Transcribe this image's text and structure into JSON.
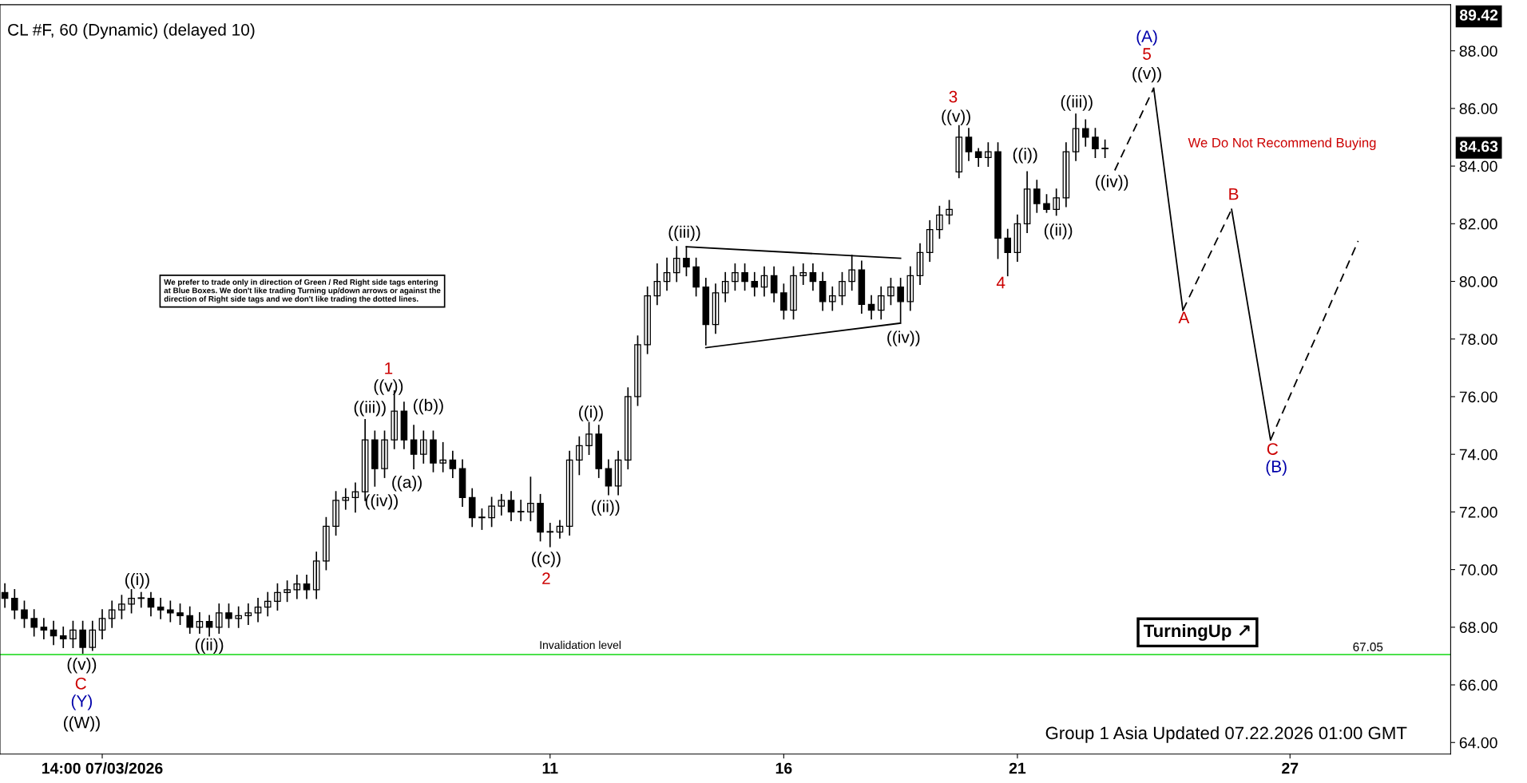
{
  "chart_data": {
    "type": "candlestick",
    "title": "CL #F, 60 (Dynamic) (delayed 10)",
    "categories": [
      null,
      null,
      null,
      null,
      null,
      null,
      null,
      null,
      null,
      null,
      "14:00 07/03/2026",
      null,
      null,
      null,
      null,
      null,
      null,
      null,
      null,
      null,
      null,
      null,
      null,
      null,
      null,
      null,
      null,
      null,
      null,
      null,
      null,
      null,
      null,
      null,
      null,
      null,
      null,
      null,
      null,
      null,
      null,
      null,
      null,
      null,
      null,
      null,
      null,
      null,
      null,
      null,
      null,
      null,
      null,
      null,
      null,
      null,
      "11",
      null,
      null,
      null,
      null,
      null,
      null,
      null,
      null,
      null,
      null,
      null,
      null,
      null,
      null,
      null,
      null,
      null,
      null,
      null,
      null,
      null,
      null,
      null,
      "16",
      null,
      null,
      null,
      null,
      null,
      null,
      null,
      null,
      null,
      null,
      null,
      null,
      null,
      null,
      null,
      null,
      null,
      null,
      null,
      null,
      null,
      null,
      null,
      "21",
      null,
      null,
      null,
      null,
      null,
      null,
      null,
      null,
      null,
      null,
      null,
      null,
      null,
      null,
      null,
      null,
      null,
      null,
      null,
      null,
      null,
      null,
      null,
      null,
      null,
      null,
      null,
      "27",
      null,
      null,
      null,
      null,
      null,
      null,
      null,
      null,
      null,
      null,
      null,
      null,
      null,
      null,
      null,
      null
    ],
    "ohlc": [
      [
        69.2,
        69.5,
        68.7,
        69.0
      ],
      [
        69.0,
        69.3,
        68.3,
        68.6
      ],
      [
        68.6,
        68.9,
        68.0,
        68.3
      ],
      [
        68.3,
        68.6,
        67.7,
        68.0
      ],
      [
        68.0,
        68.3,
        67.6,
        67.9
      ],
      [
        67.9,
        68.2,
        67.4,
        67.7
      ],
      [
        67.7,
        68.0,
        67.3,
        67.6
      ],
      [
        67.6,
        68.2,
        67.3,
        67.9
      ],
      [
        67.9,
        68.2,
        67.1,
        67.3
      ],
      [
        67.3,
        68.2,
        67.2,
        67.9
      ],
      [
        67.9,
        68.6,
        67.6,
        68.3
      ],
      [
        68.3,
        68.9,
        68.0,
        68.6
      ],
      [
        68.6,
        69.1,
        68.3,
        68.8
      ],
      [
        68.8,
        69.3,
        68.5,
        69.0
      ],
      [
        69.0,
        69.2,
        68.7,
        69.0
      ],
      [
        69.0,
        69.2,
        68.4,
        68.7
      ],
      [
        68.7,
        69.0,
        68.3,
        68.6
      ],
      [
        68.6,
        68.9,
        68.2,
        68.5
      ],
      [
        68.5,
        68.8,
        68.1,
        68.4
      ],
      [
        68.4,
        68.7,
        67.8,
        68.0
      ],
      [
        68.0,
        68.5,
        67.8,
        68.2
      ],
      [
        68.2,
        68.4,
        67.7,
        68.0
      ],
      [
        68.0,
        68.8,
        67.8,
        68.5
      ],
      [
        68.5,
        68.8,
        68.0,
        68.3
      ],
      [
        68.3,
        68.7,
        68.0,
        68.4
      ],
      [
        68.4,
        68.8,
        68.1,
        68.5
      ],
      [
        68.5,
        69.0,
        68.2,
        68.7
      ],
      [
        68.7,
        69.2,
        68.4,
        68.9
      ],
      [
        68.9,
        69.5,
        68.6,
        69.2
      ],
      [
        69.2,
        69.6,
        68.9,
        69.3
      ],
      [
        69.3,
        69.8,
        69.0,
        69.5
      ],
      [
        69.5,
        69.8,
        69.0,
        69.3
      ],
      [
        69.3,
        70.6,
        69.0,
        70.3
      ],
      [
        70.3,
        71.8,
        70.0,
        71.5
      ],
      [
        71.5,
        72.7,
        71.2,
        72.4
      ],
      [
        72.4,
        72.8,
        72.1,
        72.5
      ],
      [
        72.5,
        73.0,
        72.0,
        72.7
      ],
      [
        72.7,
        75.2,
        72.4,
        74.5
      ],
      [
        74.5,
        74.8,
        72.9,
        73.5
      ],
      [
        73.5,
        74.8,
        73.2,
        74.5
      ],
      [
        74.5,
        76.2,
        74.2,
        75.5
      ],
      [
        75.5,
        75.8,
        74.2,
        74.5
      ],
      [
        74.5,
        75.0,
        73.5,
        74.0
      ],
      [
        74.0,
        74.8,
        73.7,
        74.5
      ],
      [
        74.5,
        74.8,
        73.4,
        73.7
      ],
      [
        73.7,
        74.4,
        73.4,
        73.8
      ],
      [
        73.8,
        74.1,
        73.2,
        73.5
      ],
      [
        73.5,
        73.8,
        72.2,
        72.5
      ],
      [
        72.5,
        72.8,
        71.5,
        71.8
      ],
      [
        71.8,
        72.1,
        71.4,
        71.8
      ],
      [
        71.8,
        72.5,
        71.5,
        72.2
      ],
      [
        72.2,
        72.6,
        71.9,
        72.4
      ],
      [
        72.4,
        72.7,
        71.7,
        72.0
      ],
      [
        72.0,
        72.4,
        71.7,
        72.0
      ],
      [
        72.0,
        73.2,
        71.7,
        72.3
      ],
      [
        72.3,
        72.6,
        71.0,
        71.3
      ],
      [
        71.3,
        71.6,
        70.8,
        71.3
      ],
      [
        71.3,
        71.7,
        71.1,
        71.5
      ],
      [
        71.5,
        74.1,
        71.2,
        73.8
      ],
      [
        73.8,
        74.6,
        73.3,
        74.3
      ],
      [
        74.3,
        75.1,
        74.0,
        74.7
      ],
      [
        74.7,
        75.0,
        73.2,
        73.5
      ],
      [
        73.5,
        73.8,
        72.6,
        72.9
      ],
      [
        72.9,
        74.1,
        72.6,
        73.8
      ],
      [
        73.8,
        76.3,
        73.5,
        76.0
      ],
      [
        76.0,
        78.1,
        75.7,
        77.8
      ],
      [
        77.8,
        79.8,
        77.5,
        79.5
      ],
      [
        79.5,
        80.6,
        79.2,
        80.0
      ],
      [
        80.0,
        80.8,
        79.7,
        80.3
      ],
      [
        80.3,
        81.2,
        80.0,
        80.8
      ],
      [
        80.8,
        81.2,
        80.2,
        80.5
      ],
      [
        80.5,
        80.8,
        79.5,
        79.8
      ],
      [
        79.8,
        80.1,
        77.8,
        78.5
      ],
      [
        78.5,
        79.9,
        78.2,
        79.6
      ],
      [
        79.6,
        80.3,
        79.3,
        80.0
      ],
      [
        80.0,
        80.6,
        79.7,
        80.3
      ],
      [
        80.3,
        80.6,
        79.7,
        80.0
      ],
      [
        80.0,
        80.3,
        79.5,
        79.8
      ],
      [
        79.8,
        80.5,
        79.5,
        80.2
      ],
      [
        80.2,
        80.5,
        79.3,
        79.6
      ],
      [
        79.6,
        79.9,
        78.7,
        79.0
      ],
      [
        79.0,
        80.5,
        78.7,
        80.2
      ],
      [
        80.2,
        80.6,
        79.9,
        80.3
      ],
      [
        80.3,
        80.6,
        79.7,
        80.0
      ],
      [
        80.0,
        80.3,
        79.0,
        79.3
      ],
      [
        79.3,
        79.8,
        79.0,
        79.5
      ],
      [
        79.5,
        80.3,
        79.2,
        80.0
      ],
      [
        80.0,
        80.9,
        79.7,
        80.4
      ],
      [
        80.4,
        80.7,
        78.9,
        79.2
      ],
      [
        79.2,
        79.5,
        78.7,
        79.0
      ],
      [
        79.0,
        79.8,
        78.7,
        79.5
      ],
      [
        79.5,
        80.1,
        79.2,
        79.8
      ],
      [
        79.8,
        80.1,
        78.6,
        79.3
      ],
      [
        79.3,
        80.5,
        79.0,
        80.2
      ],
      [
        80.2,
        81.3,
        79.9,
        81.0
      ],
      [
        81.0,
        82.1,
        80.7,
        81.8
      ],
      [
        81.8,
        82.6,
        81.5,
        82.3
      ],
      [
        82.3,
        82.8,
        82.0,
        82.5
      ],
      [
        83.8,
        85.4,
        83.6,
        85.0
      ],
      [
        85.0,
        85.3,
        84.2,
        84.5
      ],
      [
        84.5,
        84.6,
        84.0,
        84.3
      ],
      [
        84.3,
        84.8,
        84.0,
        84.5
      ],
      [
        84.5,
        84.8,
        80.8,
        81.5
      ],
      [
        81.5,
        81.8,
        80.2,
        81.0
      ],
      [
        81.0,
        82.3,
        80.7,
        82.0
      ],
      [
        82.0,
        83.8,
        81.7,
        83.2
      ],
      [
        83.2,
        83.5,
        82.4,
        82.7
      ],
      [
        82.7,
        83.0,
        82.4,
        82.5
      ],
      [
        82.5,
        83.2,
        82.3,
        82.9
      ],
      [
        82.9,
        84.8,
        82.6,
        84.5
      ],
      [
        84.5,
        85.8,
        84.2,
        85.3
      ],
      [
        85.3,
        85.6,
        84.7,
        85.0
      ],
      [
        85.0,
        85.3,
        84.3,
        84.6
      ],
      [
        84.6,
        84.9,
        84.3,
        84.6
      ],
      null,
      null,
      null,
      null,
      null,
      null,
      null,
      null,
      null,
      null,
      null,
      null,
      null,
      null,
      null,
      null,
      null,
      null,
      null,
      null,
      null,
      null,
      null,
      null,
      null,
      null,
      null,
      null,
      null,
      null,
      null,
      null,
      null,
      null,
      null
    ],
    "color": "#000000",
    "series": [
      {
        "type": "line",
        "color": "#000000",
        "line_style": "solid",
        "values": [
          null,
          null,
          null,
          null,
          null,
          null,
          null,
          null,
          null,
          null,
          null,
          null,
          null,
          null,
          null,
          null,
          null,
          null,
          null,
          null,
          null,
          null,
          null,
          null,
          null,
          null,
          null,
          null,
          null,
          null,
          null,
          null,
          null,
          null,
          null,
          null,
          null,
          null,
          null,
          null,
          null,
          null,
          null,
          null,
          null,
          null,
          null,
          null,
          null,
          null,
          null,
          null,
          null,
          null,
          null,
          null,
          null,
          null,
          null,
          null,
          null,
          null,
          null,
          null,
          null,
          null,
          null,
          null,
          null,
          null,
          81.2,
          null,
          null,
          null,
          null,
          null,
          null,
          null,
          null,
          null,
          null,
          null,
          null,
          null,
          null,
          null,
          null,
          null,
          null,
          null,
          null,
          null,
          80.8,
          null,
          null,
          null,
          null,
          null,
          null,
          null,
          null,
          null,
          null,
          null,
          null,
          null,
          null,
          null,
          null,
          null,
          null,
          null,
          null,
          null,
          null,
          null,
          null,
          null,
          null,
          null,
          null,
          null,
          null,
          null,
          null,
          null,
          null,
          null,
          null,
          null,
          null,
          null,
          null,
          null,
          null,
          null,
          null,
          null,
          null,
          null,
          null,
          null,
          null,
          null,
          null,
          null,
          null,
          null,
          null
        ]
      },
      {
        "type": "line",
        "color": "#000000",
        "line_style": "solid",
        "values": [
          null,
          null,
          null,
          null,
          null,
          null,
          null,
          null,
          null,
          null,
          null,
          null,
          null,
          null,
          null,
          null,
          null,
          null,
          null,
          null,
          null,
          null,
          null,
          null,
          null,
          null,
          null,
          null,
          null,
          null,
          null,
          null,
          null,
          null,
          null,
          null,
          null,
          null,
          null,
          null,
          null,
          null,
          null,
          null,
          null,
          null,
          null,
          null,
          null,
          null,
          null,
          null,
          null,
          null,
          null,
          null,
          null,
          null,
          null,
          null,
          null,
          null,
          null,
          null,
          null,
          null,
          null,
          null,
          null,
          null,
          null,
          null,
          77.7,
          null,
          null,
          null,
          null,
          null,
          null,
          null,
          null,
          null,
          null,
          null,
          null,
          null,
          null,
          null,
          null,
          null,
          null,
          null,
          78.55,
          null,
          null,
          null,
          null,
          null,
          null,
          null,
          null,
          null,
          null,
          null,
          null,
          null,
          null,
          null,
          null,
          null,
          null,
          null,
          null,
          null,
          null,
          null,
          null,
          null,
          null,
          null,
          null,
          null,
          null,
          null,
          null,
          null,
          null,
          null,
          null,
          null,
          null,
          null,
          null,
          null,
          null,
          null,
          null,
          null,
          null,
          null,
          null,
          null,
          null,
          null,
          null,
          null,
          null,
          null,
          null
        ]
      },
      {
        "type": "line",
        "color": "#000000",
        "line_style": "dashed",
        "values": [
          null,
          null,
          null,
          null,
          null,
          null,
          null,
          null,
          null,
          null,
          null,
          null,
          null,
          null,
          null,
          null,
          null,
          null,
          null,
          null,
          null,
          null,
          null,
          null,
          null,
          null,
          null,
          null,
          null,
          null,
          null,
          null,
          null,
          null,
          null,
          null,
          null,
          null,
          null,
          null,
          null,
          null,
          null,
          null,
          null,
          null,
          null,
          null,
          null,
          null,
          null,
          null,
          null,
          null,
          null,
          null,
          null,
          null,
          null,
          null,
          null,
          null,
          null,
          null,
          null,
          null,
          null,
          null,
          null,
          null,
          null,
          null,
          null,
          null,
          null,
          null,
          null,
          null,
          null,
          null,
          null,
          null,
          null,
          null,
          null,
          null,
          null,
          null,
          null,
          null,
          null,
          null,
          null,
          null,
          null,
          null,
          null,
          null,
          null,
          null,
          null,
          null,
          null,
          null,
          null,
          null,
          null,
          null,
          null,
          null,
          null,
          null,
          null,
          null,
          83.85,
          null,
          null,
          null,
          86.7,
          null,
          null,
          null,
          null,
          null,
          null,
          null,
          null,
          null,
          null,
          null,
          null,
          null,
          null,
          null,
          null,
          null,
          null,
          null,
          null,
          null,
          null,
          null,
          null,
          null,
          null,
          null,
          null,
          null,
          null
        ]
      },
      {
        "type": "line",
        "color": "#000000",
        "line_style": "solid",
        "values": [
          null,
          null,
          null,
          null,
          null,
          null,
          null,
          null,
          null,
          null,
          null,
          null,
          null,
          null,
          null,
          null,
          null,
          null,
          null,
          null,
          null,
          null,
          null,
          null,
          null,
          null,
          null,
          null,
          null,
          null,
          null,
          null,
          null,
          null,
          null,
          null,
          null,
          null,
          null,
          null,
          null,
          null,
          null,
          null,
          null,
          null,
          null,
          null,
          null,
          null,
          null,
          null,
          null,
          null,
          null,
          null,
          null,
          null,
          null,
          null,
          null,
          null,
          null,
          null,
          null,
          null,
          null,
          null,
          null,
          null,
          null,
          null,
          null,
          null,
          null,
          null,
          null,
          null,
          null,
          null,
          null,
          null,
          null,
          null,
          null,
          null,
          null,
          null,
          null,
          null,
          null,
          null,
          null,
          null,
          null,
          null,
          null,
          null,
          null,
          null,
          null,
          null,
          null,
          null,
          null,
          null,
          null,
          null,
          null,
          null,
          null,
          null,
          null,
          null,
          null,
          null,
          null,
          null,
          86.7,
          null,
          null,
          79.0,
          null,
          null,
          null,
          null,
          null,
          null,
          null,
          null,
          null,
          null,
          null,
          null,
          null,
          null,
          null,
          null,
          null,
          null,
          null,
          null,
          null,
          null,
          null,
          null,
          null,
          null,
          null
        ]
      },
      {
        "type": "line",
        "color": "#000000",
        "line_style": "dashed",
        "values": [
          null,
          null,
          null,
          null,
          null,
          null,
          null,
          null,
          null,
          null,
          null,
          null,
          null,
          null,
          null,
          null,
          null,
          null,
          null,
          null,
          null,
          null,
          null,
          null,
          null,
          null,
          null,
          null,
          null,
          null,
          null,
          null,
          null,
          null,
          null,
          null,
          null,
          null,
          null,
          null,
          null,
          null,
          null,
          null,
          null,
          null,
          null,
          null,
          null,
          null,
          null,
          null,
          null,
          null,
          null,
          null,
          null,
          null,
          null,
          null,
          null,
          null,
          null,
          null,
          null,
          null,
          null,
          null,
          null,
          null,
          null,
          null,
          null,
          null,
          null,
          null,
          null,
          null,
          null,
          null,
          null,
          null,
          null,
          null,
          null,
          null,
          null,
          null,
          null,
          null,
          null,
          null,
          null,
          null,
          null,
          null,
          null,
          null,
          null,
          null,
          null,
          null,
          null,
          null,
          null,
          null,
          null,
          null,
          null,
          null,
          null,
          null,
          null,
          null,
          null,
          null,
          null,
          null,
          null,
          null,
          null,
          79.0,
          null,
          null,
          null,
          null,
          82.5,
          null,
          null,
          null,
          null,
          null,
          null,
          null,
          null,
          null,
          null,
          null,
          null,
          null,
          null,
          null,
          null,
          null,
          null,
          null,
          null,
          null,
          null
        ]
      },
      {
        "type": "line",
        "color": "#000000",
        "line_style": "solid",
        "values": [
          null,
          null,
          null,
          null,
          null,
          null,
          null,
          null,
          null,
          null,
          null,
          null,
          null,
          null,
          null,
          null,
          null,
          null,
          null,
          null,
          null,
          null,
          null,
          null,
          null,
          null,
          null,
          null,
          null,
          null,
          null,
          null,
          null,
          null,
          null,
          null,
          null,
          null,
          null,
          null,
          null,
          null,
          null,
          null,
          null,
          null,
          null,
          null,
          null,
          null,
          null,
          null,
          null,
          null,
          null,
          null,
          null,
          null,
          null,
          null,
          null,
          null,
          null,
          null,
          null,
          null,
          null,
          null,
          null,
          null,
          null,
          null,
          null,
          null,
          null,
          null,
          null,
          null,
          null,
          null,
          null,
          null,
          null,
          null,
          null,
          null,
          null,
          null,
          null,
          null,
          null,
          null,
          null,
          null,
          null,
          null,
          null,
          null,
          null,
          null,
          null,
          null,
          null,
          null,
          null,
          null,
          null,
          null,
          null,
          null,
          null,
          null,
          null,
          null,
          null,
          null,
          null,
          null,
          null,
          null,
          null,
          null,
          null,
          null,
          null,
          null,
          82.5,
          null,
          null,
          null,
          74.5,
          null,
          null,
          null,
          null,
          null,
          null,
          null,
          null,
          null,
          null,
          null,
          null,
          null,
          null,
          null,
          null,
          null,
          null
        ]
      },
      {
        "type": "line",
        "color": "#000000",
        "line_style": "dashed",
        "values": [
          null,
          null,
          null,
          null,
          null,
          null,
          null,
          null,
          null,
          null,
          null,
          null,
          null,
          null,
          null,
          null,
          null,
          null,
          null,
          null,
          null,
          null,
          null,
          null,
          null,
          null,
          null,
          null,
          null,
          null,
          null,
          null,
          null,
          null,
          null,
          null,
          null,
          null,
          null,
          null,
          null,
          null,
          null,
          null,
          null,
          null,
          null,
          null,
          null,
          null,
          null,
          null,
          null,
          null,
          null,
          null,
          null,
          null,
          null,
          null,
          null,
          null,
          null,
          null,
          null,
          null,
          null,
          null,
          null,
          null,
          null,
          null,
          null,
          null,
          null,
          null,
          null,
          null,
          null,
          null,
          null,
          null,
          null,
          null,
          null,
          null,
          null,
          null,
          null,
          null,
          null,
          null,
          null,
          null,
          null,
          null,
          null,
          null,
          null,
          null,
          null,
          null,
          null,
          null,
          null,
          null,
          null,
          null,
          null,
          null,
          null,
          null,
          null,
          null,
          null,
          null,
          null,
          null,
          null,
          null,
          null,
          null,
          null,
          null,
          null,
          null,
          null,
          null,
          null,
          null,
          74.5,
          null,
          null,
          null,
          null,
          null,
          null,
          null,
          null,
          81.4,
          null,
          null,
          null,
          null,
          null,
          null,
          null,
          null,
          null
        ]
      }
    ],
    "ylim": [
      63.6,
      89.6
    ],
    "yticks": [
      {
        "value": 64,
        "label": "64.00"
      },
      {
        "value": 66,
        "label": "66.00"
      },
      {
        "value": 68,
        "label": "68.00"
      },
      {
        "value": 70,
        "label": "70.00"
      },
      {
        "value": 72,
        "label": "72.00"
      },
      {
        "value": 74,
        "label": "74.00"
      },
      {
        "value": 76,
        "label": "76.00"
      },
      {
        "value": 78,
        "label": "78.00"
      },
      {
        "value": 80,
        "label": "80.00"
      },
      {
        "value": 82,
        "label": "82.00"
      },
      {
        "value": 84,
        "label": "84.00"
      },
      {
        "value": 86,
        "label": "86.00"
      },
      {
        "value": 88,
        "label": "88.00"
      }
    ],
    "grid": false,
    "ref_lines": [
      {
        "axis": "y",
        "value": 67.05,
        "label": "Invalidation level",
        "color": "#33dd33"
      }
    ],
    "annotations": [
      "((v))",
      "C",
      "(Y)",
      "((W))",
      "((i))",
      "((ii))",
      "((iii))",
      "((iv))",
      "((v))",
      "1",
      "((b))",
      "((a))",
      "((c))",
      "2",
      "((i))",
      "((ii))",
      "((iii))",
      "((iv))",
      "3",
      "((v))",
      "4",
      "((i))",
      "((ii))",
      "((iii))",
      "((iv))",
      "(A)",
      "5",
      "((v))",
      "A",
      "B",
      "C",
      "(B)",
      "67.05",
      "89.42",
      "84.63",
      "We prefer to trade only in direction of Green / Red Right side tags entering at Blue Boxes. We don't like trading Turning up/down arrows or against the direction of Right side tags and we don't like trading the dotted lines.",
      "We Do Not Recommend Buying",
      "TurningUp ↗",
      "Group 1 Asia Updated 07.22.2026 01:00 GMT"
    ]
  }
}
